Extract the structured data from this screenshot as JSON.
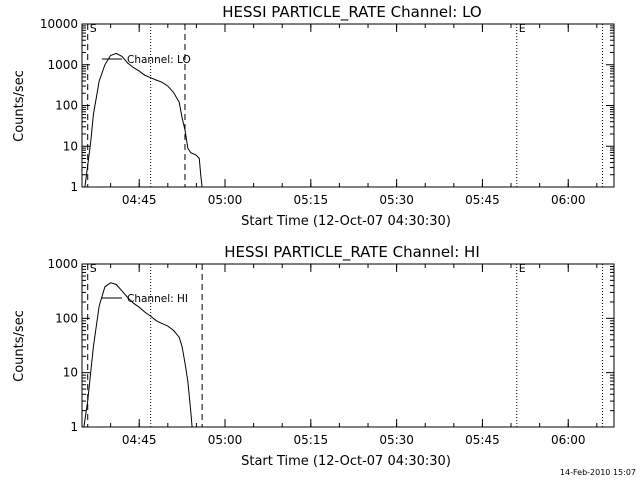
{
  "chart_data": [
    {
      "type": "line",
      "title": "HESSI PARTICLE_RATE Channel: LO",
      "xlabel": "Start Time (12-Oct-07 04:30:30)",
      "ylabel": "Counts/sec",
      "yscale": "log",
      "ylim": [
        1,
        10000
      ],
      "yticks": [
        "1",
        "10",
        "100",
        "1000",
        "10000"
      ],
      "xticks": [
        "04:45",
        "05:00",
        "05:15",
        "05:30",
        "05:45",
        "06:00"
      ],
      "x_range": [
        "04:35:00",
        "06:08:00"
      ],
      "legend": "Channel: LO",
      "markers": [
        {
          "label": "S",
          "time": "04:36:00",
          "style": "dashed"
        },
        {
          "label": "",
          "time": "04:47:00",
          "style": "dotted"
        },
        {
          "label": "",
          "time": "04:53:00",
          "style": "dashed"
        },
        {
          "label": "E",
          "time": "05:51:00",
          "style": "dotted"
        },
        {
          "label": "",
          "time": "06:06:00",
          "style": "dotted"
        }
      ],
      "series": [
        {
          "name": "Channel: LO",
          "x": [
            "04:35:30",
            "04:36:30",
            "04:37:00",
            "04:38:00",
            "04:39:00",
            "04:40:00",
            "04:41:00",
            "04:42:00",
            "04:43:00",
            "04:44:00",
            "04:45:00",
            "04:46:00",
            "04:47:00",
            "04:48:00",
            "04:49:00",
            "04:50:00",
            "04:51:00",
            "04:52:00",
            "04:52:30",
            "04:53:00",
            "04:53:30",
            "04:54:00",
            "04:55:00",
            "04:55:30",
            "04:55:45",
            "04:56:00"
          ],
          "y": [
            1,
            12,
            60,
            400,
            1000,
            1700,
            1900,
            1600,
            1100,
            850,
            700,
            550,
            480,
            420,
            370,
            300,
            210,
            120,
            50,
            25,
            9,
            7,
            6,
            5,
            2,
            1
          ]
        }
      ]
    },
    {
      "type": "line",
      "title": "HESSI PARTICLE_RATE Channel: HI",
      "xlabel": "Start Time (12-Oct-07 04:30:30)",
      "ylabel": "Counts/sec",
      "yscale": "log",
      "ylim": [
        1,
        1000
      ],
      "yticks": [
        "1",
        "10",
        "100",
        "1000"
      ],
      "xticks": [
        "04:45",
        "05:00",
        "05:15",
        "05:30",
        "05:45",
        "06:00"
      ],
      "x_range": [
        "04:35:00",
        "06:08:00"
      ],
      "legend": "Channel: HI",
      "markers": [
        {
          "label": "S",
          "time": "04:36:00",
          "style": "dashed"
        },
        {
          "label": "",
          "time": "04:47:00",
          "style": "dotted"
        },
        {
          "label": "",
          "time": "04:56:00",
          "style": "dashed"
        },
        {
          "label": "E",
          "time": "05:51:00",
          "style": "dotted"
        },
        {
          "label": "",
          "time": "06:06:00",
          "style": "dotted"
        }
      ],
      "series": [
        {
          "name": "Channel: HI",
          "x": [
            "04:35:20",
            "04:36:00",
            "04:37:00",
            "04:38:00",
            "04:39:00",
            "04:40:00",
            "04:41:00",
            "04:42:00",
            "04:43:00",
            "04:44:00",
            "04:45:00",
            "04:46:00",
            "04:47:00",
            "04:48:00",
            "04:49:00",
            "04:50:00",
            "04:51:00",
            "04:52:00",
            "04:52:30",
            "04:53:00",
            "04:53:30",
            "04:54:00",
            "04:54:15"
          ],
          "y": [
            1,
            3,
            30,
            170,
            380,
            450,
            420,
            320,
            240,
            190,
            160,
            130,
            110,
            90,
            80,
            72,
            60,
            45,
            30,
            15,
            7,
            2,
            1
          ]
        }
      ]
    }
  ],
  "footer": {
    "timestamp": "14-Feb-2010 15:07"
  },
  "colors": {
    "background": "#ffffff",
    "foreground": "#000000"
  }
}
